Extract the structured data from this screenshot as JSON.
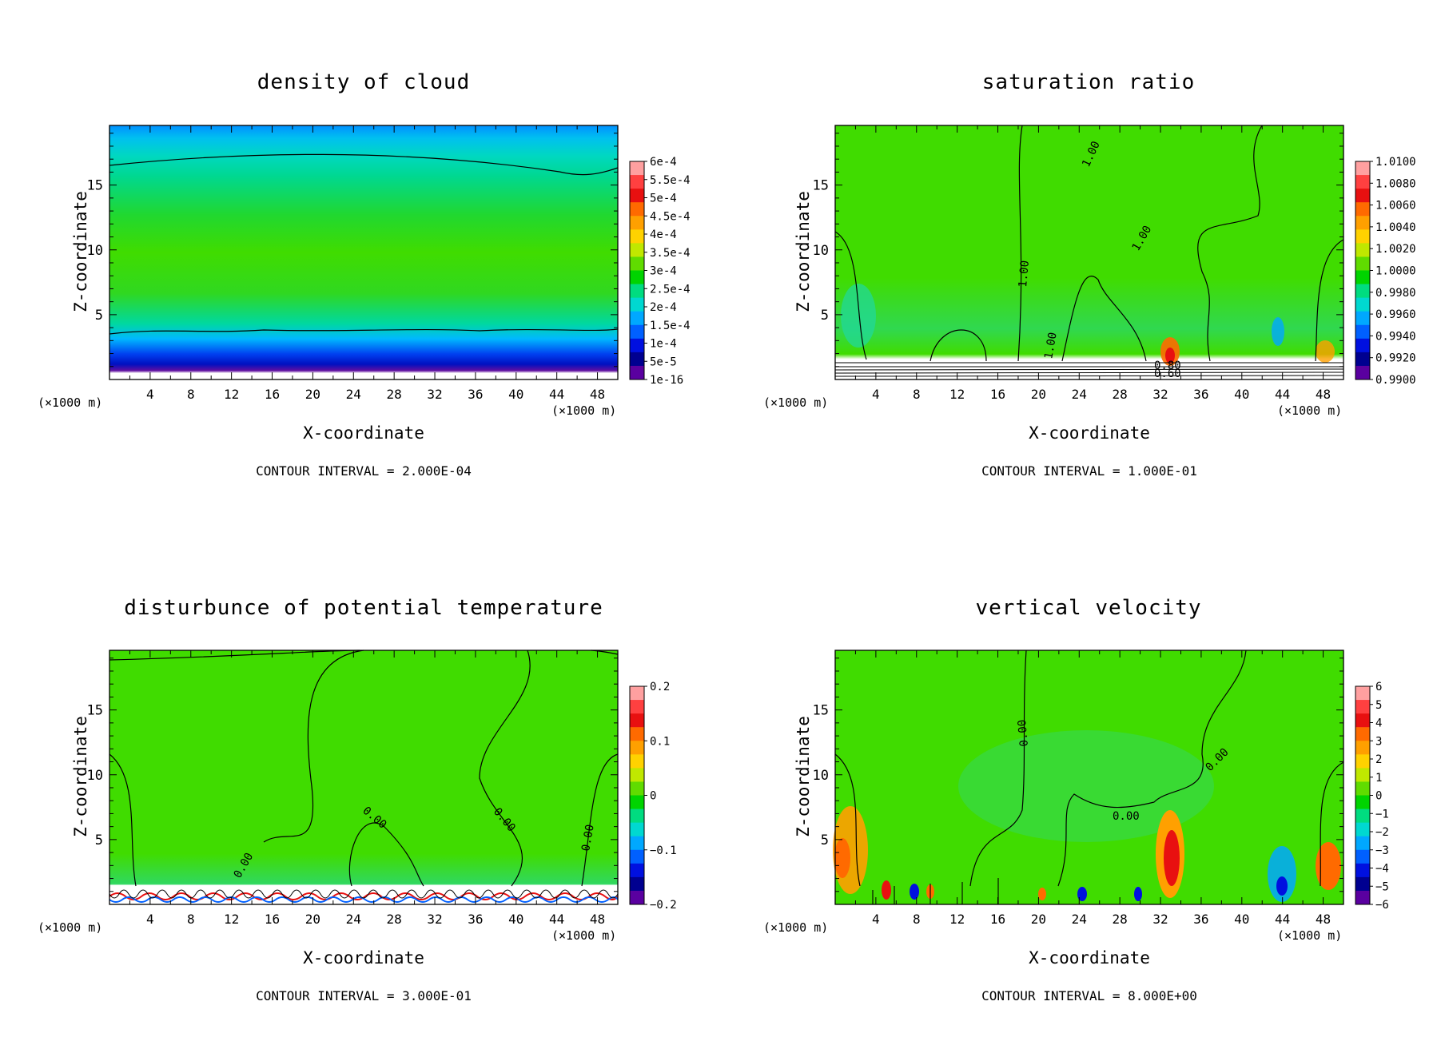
{
  "chart_data": [
    {
      "type": "heatmap",
      "title": "density of cloud",
      "xlabel": "X-coordinate",
      "ylabel": "Z-coordinate",
      "x_unit": "(×1000 m)",
      "y_unit": "(×1000 m)",
      "xlim": [
        0,
        50
      ],
      "ylim": [
        0,
        19.6
      ],
      "xticks": [
        4,
        8,
        12,
        16,
        20,
        24,
        28,
        32,
        36,
        40,
        44,
        48
      ],
      "yticks": [
        5,
        10,
        15
      ],
      "contour_interval": "CONTOUR INTERVAL = 2.000E-04",
      "colorbar": {
        "labels": [
          "6e-4",
          "5.5e-4",
          "5e-4",
          "4.5e-4",
          "4e-4",
          "3.5e-4",
          "3e-4",
          "2.5e-4",
          "2e-4",
          "1.5e-4",
          "1e-4",
          "5e-5",
          "1e-16"
        ],
        "colors": [
          "#ffa0a0",
          "#ff4040",
          "#e81010",
          "#ff6a00",
          "#ffa000",
          "#ffd200",
          "#c0e800",
          "#60dc00",
          "#00d400",
          "#00dc80",
          "#00d8d0",
          "#00a8ff",
          "#0060ff",
          "#0010e0",
          "#000090",
          "#5a00a0"
        ]
      },
      "contour_labels": []
    },
    {
      "type": "heatmap",
      "title": "saturation ratio",
      "xlabel": "X-coordinate",
      "ylabel": "Z-coordinate",
      "x_unit": "(×1000 m)",
      "y_unit": "(×1000 m)",
      "xlim": [
        0,
        50
      ],
      "ylim": [
        0,
        19.6
      ],
      "xticks": [
        4,
        8,
        12,
        16,
        20,
        24,
        28,
        32,
        36,
        40,
        44,
        48
      ],
      "yticks": [
        5,
        10,
        15
      ],
      "contour_interval": "CONTOUR INTERVAL = 1.000E-01",
      "colorbar": {
        "labels": [
          "1.0100",
          "1.0080",
          "1.0060",
          "1.0040",
          "1.0020",
          "1.0000",
          "0.9980",
          "0.9960",
          "0.9940",
          "0.9920",
          "0.9900"
        ],
        "colors": [
          "#ffa0a0",
          "#ff4040",
          "#e81010",
          "#ff6a00",
          "#ffa000",
          "#ffd200",
          "#c0e800",
          "#60dc00",
          "#00d400",
          "#00dc80",
          "#00d8d0",
          "#00a8ff",
          "#0060ff",
          "#0010e0",
          "#000090",
          "#5a00a0"
        ]
      },
      "contour_labels": [
        "1.00",
        "1.00",
        "1.00",
        "1.00",
        "0.80",
        "0.60"
      ]
    },
    {
      "type": "heatmap",
      "title": "disturbunce of potential temperature",
      "xlabel": "X-coordinate",
      "ylabel": "Z-coordinate",
      "x_unit": "(×1000 m)",
      "y_unit": "(×1000 m)",
      "xlim": [
        0,
        50
      ],
      "ylim": [
        0,
        19.6
      ],
      "xticks": [
        4,
        8,
        12,
        16,
        20,
        24,
        28,
        32,
        36,
        40,
        44,
        48
      ],
      "yticks": [
        5,
        10,
        15
      ],
      "contour_interval": "CONTOUR INTERVAL = 3.000E-01",
      "colorbar": {
        "labels": [
          "0.2",
          "0.1",
          "0",
          "−0.1",
          "−0.2"
        ],
        "colors": [
          "#ffa0a0",
          "#ff4040",
          "#e81010",
          "#ff6a00",
          "#ffa000",
          "#ffd200",
          "#c0e800",
          "#60dc00",
          "#00d400",
          "#00dc80",
          "#00d8d0",
          "#00a8ff",
          "#0060ff",
          "#0010e0",
          "#000090",
          "#5a00a0"
        ]
      },
      "contour_labels": [
        "0.00",
        "0.00",
        "0.00",
        "0.00"
      ]
    },
    {
      "type": "heatmap",
      "title": "vertical velocity",
      "xlabel": "X-coordinate",
      "ylabel": "Z-coordinate",
      "x_unit": "(×1000 m)",
      "y_unit": "(×1000 m)",
      "xlim": [
        0,
        50
      ],
      "ylim": [
        0,
        19.6
      ],
      "xticks": [
        4,
        8,
        12,
        16,
        20,
        24,
        28,
        32,
        36,
        40,
        44,
        48
      ],
      "yticks": [
        5,
        10,
        15
      ],
      "contour_interval": "CONTOUR INTERVAL = 8.000E+00",
      "colorbar": {
        "labels": [
          "6",
          "5",
          "4",
          "3",
          "2",
          "1",
          "0",
          "−1",
          "−2",
          "−3",
          "−4",
          "−5",
          "−6"
        ],
        "colors": [
          "#ffa0a0",
          "#ff4040",
          "#e81010",
          "#ff6a00",
          "#ffa000",
          "#ffd200",
          "#c0e800",
          "#60dc00",
          "#00d400",
          "#00dc80",
          "#00d8d0",
          "#00a8ff",
          "#0060ff",
          "#0010e0",
          "#000090",
          "#5a00a0"
        ]
      },
      "contour_labels": [
        "0.00",
        "0.00",
        "0.00"
      ]
    }
  ]
}
